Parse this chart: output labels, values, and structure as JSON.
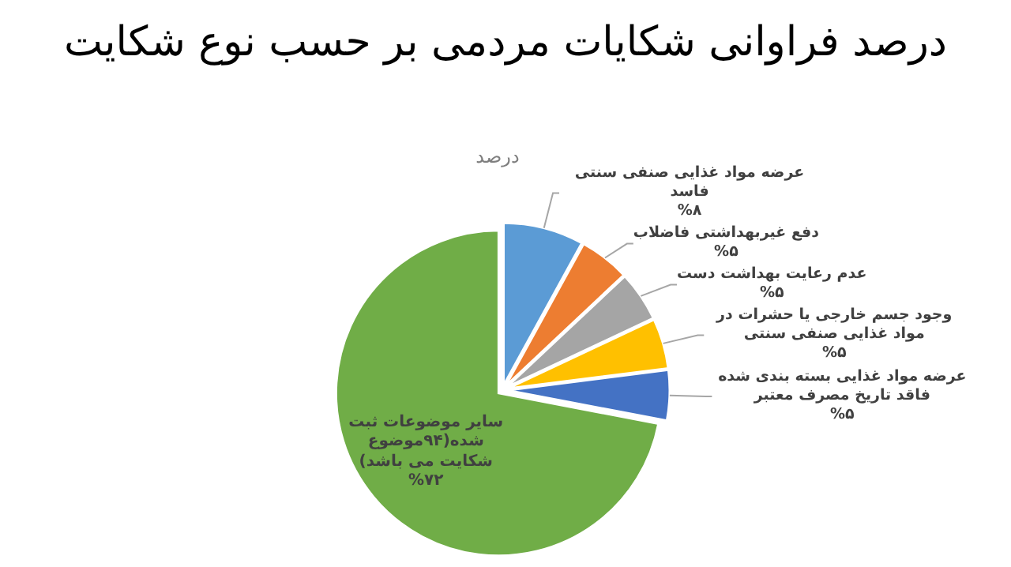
{
  "chart_data": {
    "type": "pie",
    "title": "درصد فراوانی شکایات مردمی بر حسب نوع شکایت",
    "subtitle": "درصد",
    "categories": [
      "عرضه مواد غذایی صنفی سنتی فاسد",
      "دفع غیربهداشتی فاضلاب",
      "عدم رعایت بهداشت دست",
      "وجود جسم خارجی یا حشرات در مواد غذایی صنفی سنتی",
      "عرضه مواد غذایی بسته بندی شده فاقد تاریخ مصرف معتبر",
      "سایر موضوعات ثبت شده(۹۴موضوع شکایت می باشد)"
    ],
    "values": [
      8,
      5,
      5,
      5,
      5,
      72
    ],
    "colors": [
      "#5b9bd5",
      "#ed7d31",
      "#a5a5a5",
      "#ffc000",
      "#4472c4",
      "#70ad47"
    ],
    "value_labels": [
      "%۸",
      "%۵",
      "%۵",
      "%۵",
      "%۵",
      "%۷۲"
    ]
  }
}
